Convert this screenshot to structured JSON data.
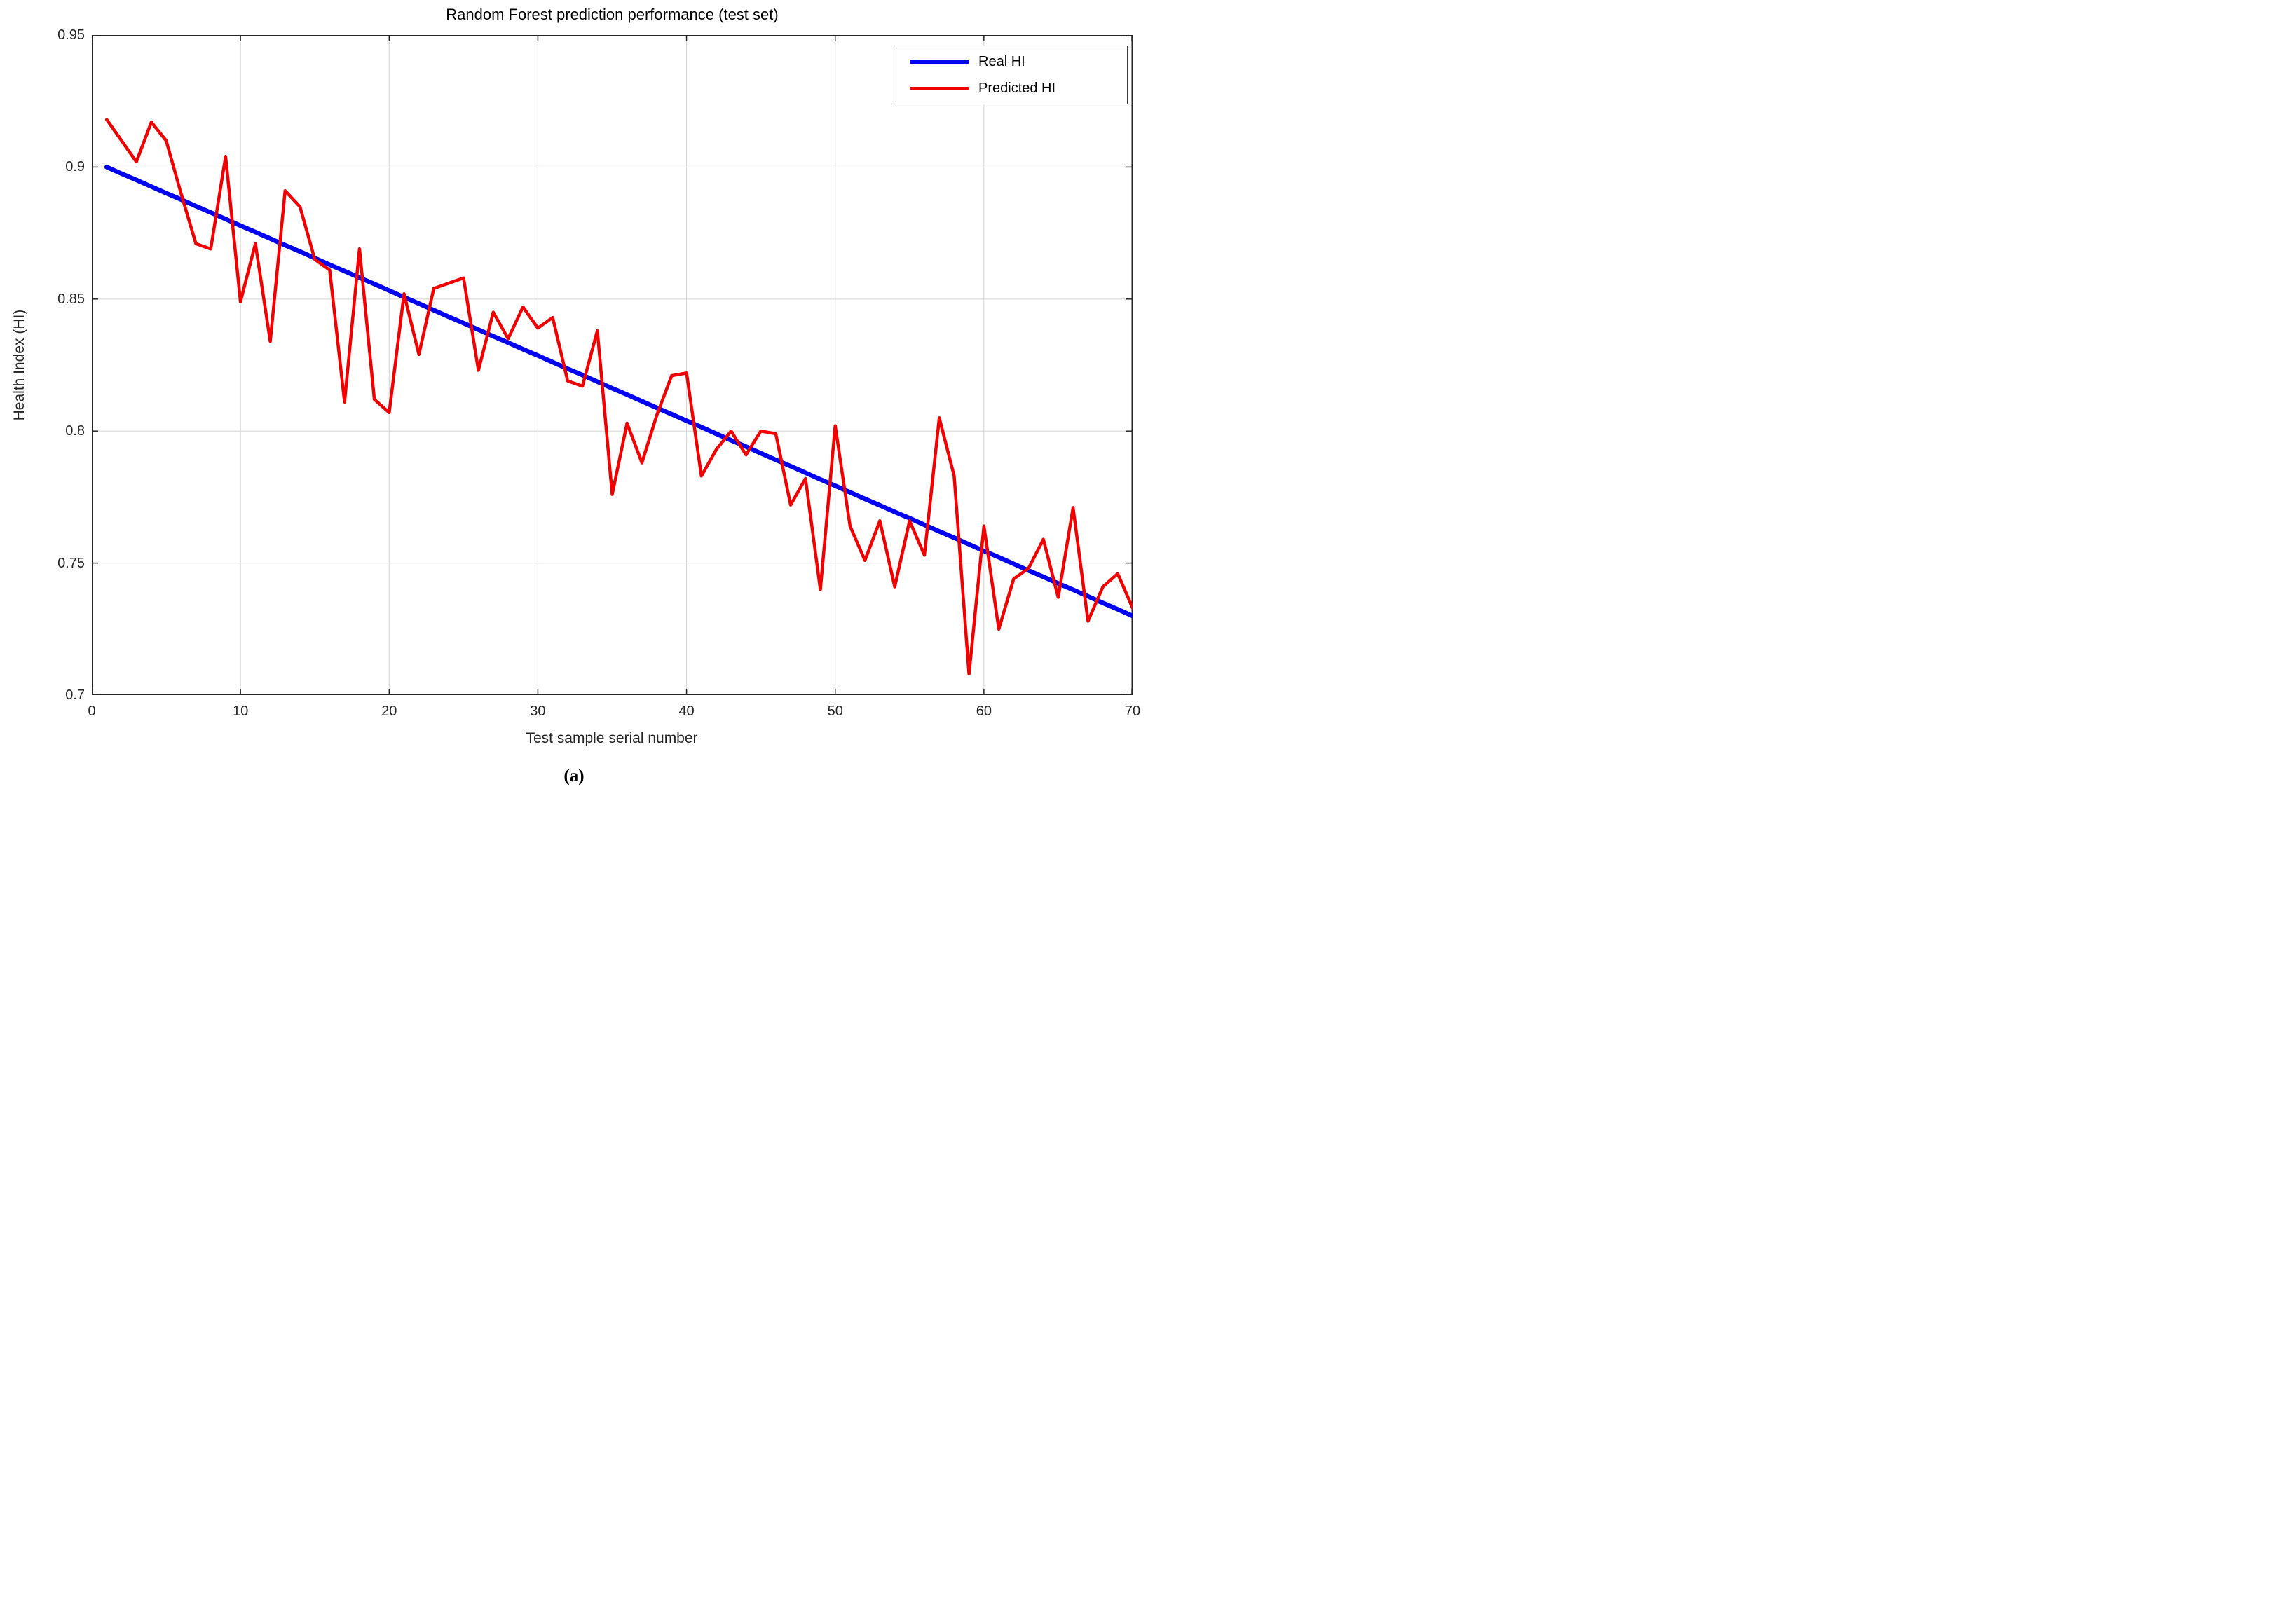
{
  "figure": {
    "caption": "(a)"
  },
  "chart_data": {
    "type": "line",
    "title": "Random Forest prediction performance (test set)",
    "xlabel": "Test sample serial number",
    "ylabel": "Health Index (HI)",
    "xlim": [
      0,
      70
    ],
    "ylim": [
      0.7,
      0.95
    ],
    "xticks": [
      0,
      10,
      20,
      30,
      40,
      50,
      60,
      70
    ],
    "xtick_labels": [
      "0",
      "10",
      "20",
      "30",
      "40",
      "50",
      "60",
      "70"
    ],
    "yticks": [
      0.7,
      0.75,
      0.8,
      0.85,
      0.9,
      0.95
    ],
    "ytick_labels": [
      "0.7",
      "0.75",
      "0.8",
      "0.85",
      "0.9",
      "0.95"
    ],
    "grid": true,
    "legend_position": "top-right",
    "colors": {
      "real_hi": "#0000f2",
      "predicted_hi": "#f20000",
      "grid": "#d9d9d9",
      "axis": "#262626"
    },
    "x": [
      1,
      2,
      3,
      4,
      5,
      6,
      7,
      8,
      9,
      10,
      11,
      12,
      13,
      14,
      15,
      16,
      17,
      18,
      19,
      20,
      21,
      22,
      23,
      24,
      25,
      26,
      27,
      28,
      29,
      30,
      31,
      32,
      33,
      34,
      35,
      36,
      37,
      38,
      39,
      40,
      41,
      42,
      43,
      44,
      45,
      46,
      47,
      48,
      49,
      50,
      51,
      52,
      53,
      54,
      55,
      56,
      57,
      58,
      59,
      60,
      61,
      62,
      63,
      64,
      65,
      66,
      67,
      68,
      69,
      70
    ],
    "series": [
      {
        "name": "Real HI",
        "color": "#0000f2",
        "line_width": 6.5,
        "values": [
          0.9,
          0.8975,
          0.8951,
          0.8926,
          0.8901,
          0.8877,
          0.8852,
          0.8828,
          0.8803,
          0.8778,
          0.8754,
          0.8729,
          0.8704,
          0.868,
          0.8655,
          0.863,
          0.8606,
          0.8581,
          0.8557,
          0.8532,
          0.8507,
          0.8483,
          0.8458,
          0.8433,
          0.8409,
          0.8384,
          0.8359,
          0.8335,
          0.831,
          0.8286,
          0.8261,
          0.8236,
          0.8212,
          0.8187,
          0.8162,
          0.8138,
          0.8113,
          0.8088,
          0.8064,
          0.8039,
          0.8015,
          0.799,
          0.7965,
          0.7941,
          0.7916,
          0.7891,
          0.7867,
          0.7842,
          0.7817,
          0.7793,
          0.7768,
          0.7743,
          0.7719,
          0.7694,
          0.767,
          0.7645,
          0.762,
          0.7596,
          0.7571,
          0.7546,
          0.7522,
          0.7497,
          0.7472,
          0.7448,
          0.7423,
          0.7399,
          0.7374,
          0.7349,
          0.7325,
          0.73
        ]
      },
      {
        "name": "Predicted HI",
        "color": "#f20000",
        "line_width": 4.5,
        "values": [
          0.918,
          0.91,
          0.902,
          0.917,
          0.91,
          0.89,
          0.871,
          0.869,
          0.904,
          0.849,
          0.871,
          0.834,
          0.891,
          0.885,
          0.865,
          0.861,
          0.811,
          0.869,
          0.812,
          0.807,
          0.852,
          0.829,
          0.854,
          0.856,
          0.858,
          0.823,
          0.845,
          0.835,
          0.847,
          0.839,
          0.843,
          0.819,
          0.817,
          0.838,
          0.776,
          0.803,
          0.788,
          0.806,
          0.821,
          0.822,
          0.783,
          0.793,
          0.8,
          0.791,
          0.8,
          0.799,
          0.772,
          0.782,
          0.74,
          0.802,
          0.764,
          0.751,
          0.766,
          0.741,
          0.766,
          0.753,
          0.805,
          0.783,
          0.708,
          0.764,
          0.725,
          0.744,
          0.748,
          0.759,
          0.737,
          0.771,
          0.728,
          0.741,
          0.746,
          0.733
        ]
      }
    ]
  }
}
